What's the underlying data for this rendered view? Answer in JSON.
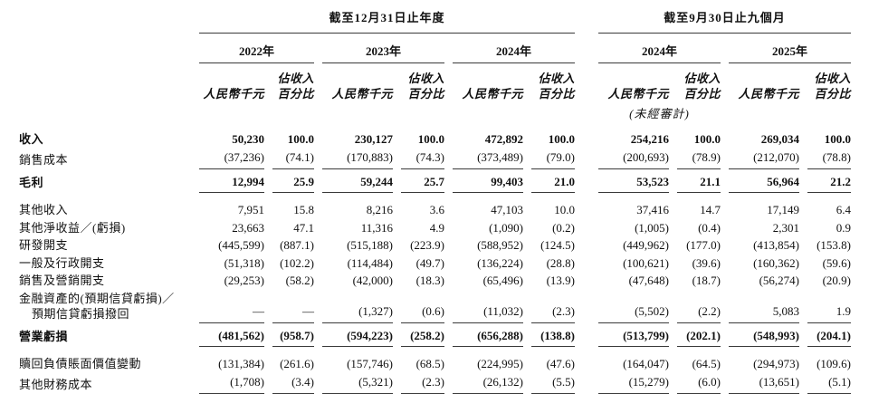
{
  "page": {
    "background": "#ffffff",
    "text_color": "#111111",
    "rule_color": "#3a3a3a"
  },
  "header": {
    "annual_title": "截至12月31日止年度",
    "nine_month_title": "截至9月30日止九個月",
    "annual_years": [
      "2022年",
      "2023年",
      "2024年"
    ],
    "nine_month_years": [
      "2024年",
      "2025年"
    ],
    "amount_unit_label": "人民幣千元",
    "pct_label_line1": "佔收入",
    "pct_label_line2": "百分比",
    "unaudited_note": "(未經審計)"
  },
  "table": {
    "rows": [
      {
        "label": "收入",
        "bold": true,
        "gap": "lg",
        "values": [
          "50,230",
          "100.0",
          "230,127",
          "100.0",
          "472,892",
          "100.0",
          "254,216",
          "100.0",
          "269,034",
          "100.0"
        ]
      },
      {
        "label": "銷售成本",
        "rule": true,
        "values": [
          "(37,236)",
          "(74.1)",
          "(170,883)",
          "(74.3)",
          "(373,489)",
          "(79.0)",
          "(200,693)",
          "(78.9)",
          "(212,070)",
          "(78.8)"
        ]
      },
      {
        "label": "毛利",
        "bold": true,
        "rule": true,
        "gap": "md",
        "values": [
          "12,994",
          "25.9",
          "59,244",
          "25.7",
          "99,403",
          "21.0",
          "53,523",
          "21.1",
          "56,964",
          "21.2"
        ]
      },
      {
        "label": "其他收入",
        "gap": "lg",
        "values": [
          "7,951",
          "15.8",
          "8,216",
          "3.6",
          "47,103",
          "10.0",
          "37,416",
          "14.7",
          "17,149",
          "6.4"
        ]
      },
      {
        "label": "其他淨收益／(虧損)",
        "values": [
          "23,663",
          "47.1",
          "11,316",
          "4.9",
          "(1,090)",
          "(0.2)",
          "(1,005)",
          "(0.4)",
          "2,301",
          "0.9"
        ]
      },
      {
        "label": "研發開支",
        "values": [
          "(445,599)",
          "(887.1)",
          "(515,188)",
          "(223.9)",
          "(588,952)",
          "(124.5)",
          "(449,962)",
          "(177.0)",
          "(413,854)",
          "(153.8)"
        ]
      },
      {
        "label": "一般及行政開支",
        "values": [
          "(51,318)",
          "(102.2)",
          "(114,484)",
          "(49.7)",
          "(136,224)",
          "(28.8)",
          "(100,621)",
          "(39.6)",
          "(160,362)",
          "(59.6)"
        ]
      },
      {
        "label": "銷售及營銷開支",
        "values": [
          "(29,253)",
          "(58.2)",
          "(42,000)",
          "(18.3)",
          "(65,496)",
          "(13.9)",
          "(47,648)",
          "(18.7)",
          "(56,274)",
          "(20.9)"
        ]
      },
      {
        "label": "金融資產的(預期信貸虧損)／",
        "label2": "預期信貸虧損撥回",
        "rule": true,
        "values": [
          "—",
          "—",
          "(1,327)",
          "(0.6)",
          "(11,032)",
          "(2.3)",
          "(5,502)",
          "(2.2)",
          "5,083",
          "1.9"
        ]
      },
      {
        "label": "營業虧損",
        "bold": true,
        "rule": true,
        "gap": "md",
        "values": [
          "(481,562)",
          "(958.7)",
          "(594,223)",
          "(258.2)",
          "(656,288)",
          "(138.8)",
          "(513,799)",
          "(202.1)",
          "(548,993)",
          "(204.1)"
        ]
      },
      {
        "label": "贖回負債賬面價值變動",
        "gap": "lg",
        "values": [
          "(131,384)",
          "(261.6)",
          "(157,746)",
          "(68.5)",
          "(224,995)",
          "(47.6)",
          "(164,047)",
          "(64.5)",
          "(294,973)",
          "(109.6)"
        ]
      },
      {
        "label": "其他財務成本",
        "rule": true,
        "values": [
          "(1,708)",
          "(3.4)",
          "(5,321)",
          "(2.3)",
          "(26,132)",
          "(5.5)",
          "(15,279)",
          "(6.0)",
          "(13,651)",
          "(5.1)"
        ]
      }
    ]
  }
}
